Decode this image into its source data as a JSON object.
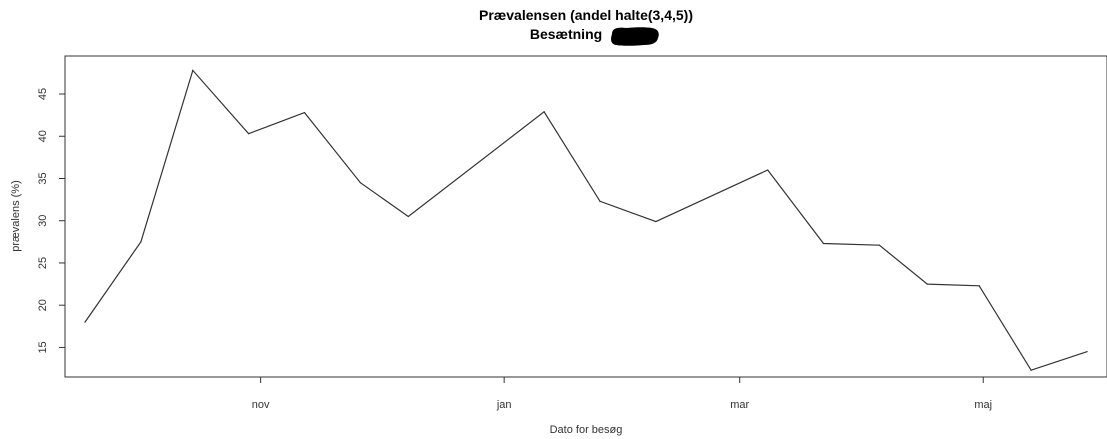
{
  "chart_data": {
    "type": "line",
    "title": "Prævalensen (andel halte(3,4,5))",
    "subtitle": "Besætning",
    "xlabel": "Dato for besøg",
    "ylabel": "prævalens (%)",
    "x_tick_labels": [
      "nov",
      "jan",
      "mar",
      "maj"
    ],
    "y_ticks": [
      15,
      20,
      25,
      30,
      35,
      40,
      45
    ],
    "ylim": [
      11.5,
      49.5
    ],
    "grid": false,
    "series": [
      {
        "x": [
          "2020-09-18",
          "2020-10-02",
          "2020-10-15",
          "2020-10-29",
          "2020-11-12",
          "2020-11-26",
          "2020-12-08",
          "2021-01-11",
          "2021-01-25",
          "2021-02-08",
          "2021-03-08",
          "2021-03-22",
          "2021-04-05",
          "2021-04-17",
          "2021-04-30",
          "2021-05-13",
          "2021-05-27"
        ],
        "values": [
          18.0,
          27.5,
          47.8,
          40.3,
          42.8,
          34.5,
          30.5,
          42.9,
          32.3,
          29.9,
          36.0,
          27.3,
          27.1,
          22.5,
          22.3,
          12.3,
          14.5
        ]
      }
    ],
    "x_tick_dates": [
      "2020-11-01",
      "2021-01-01",
      "2021-03-01",
      "2021-05-01"
    ],
    "xlim": [
      "2020-09-13",
      "2021-06-01"
    ],
    "redaction_mark": "black-redaction-blob"
  }
}
